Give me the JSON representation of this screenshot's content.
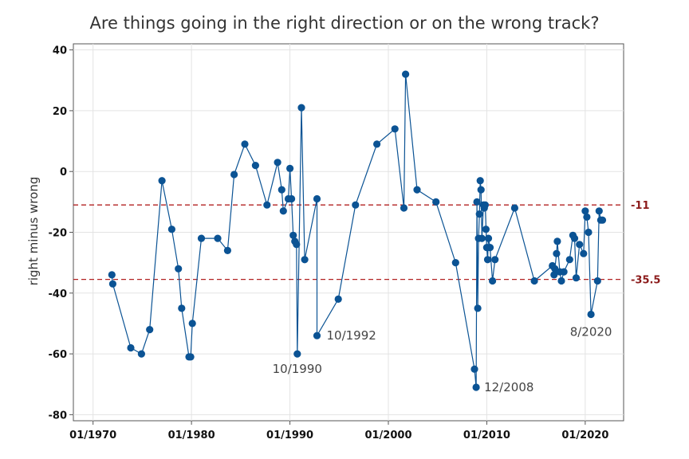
{
  "chart_data": {
    "type": "line",
    "title": "Are things going in the right direction or on the wrong track?",
    "xlabel": "",
    "ylabel": "right minus wrong",
    "ylim": [
      -82,
      42
    ],
    "y_ticks": [
      40,
      20,
      0,
      -20,
      -40,
      -60,
      -80
    ],
    "x_ticks": [
      "01/1970",
      "01/1980",
      "01/1990",
      "01/2000",
      "01/2010",
      "01/2020"
    ],
    "grid": true,
    "series_color": "#0b5394",
    "reference_color": "#b22222",
    "series": [
      {
        "points": [
          [
            "1971-12",
            -34
          ],
          [
            "1972-01",
            -37
          ],
          [
            "1973-11",
            -58
          ],
          [
            "1974-12",
            -60
          ],
          [
            "1975-10",
            -52
          ],
          [
            "1977-01",
            -3
          ],
          [
            "1978-01",
            -19
          ],
          [
            "1978-09",
            -32
          ],
          [
            "1979-01",
            -45
          ],
          [
            "1979-10",
            -61
          ],
          [
            "1979-12",
            -61
          ],
          [
            "1980-02",
            -50
          ],
          [
            "1981-01",
            -22
          ],
          [
            "1982-09",
            -22
          ],
          [
            "1983-09",
            -26
          ],
          [
            "1984-05",
            -1
          ],
          [
            "1985-06",
            9
          ],
          [
            "1986-07",
            2
          ],
          [
            "1987-09",
            -11
          ],
          [
            "1988-10",
            3
          ],
          [
            "1989-03",
            -6
          ],
          [
            "1989-05",
            -13
          ],
          [
            "1989-11",
            -9
          ],
          [
            "1990-01",
            1
          ],
          [
            "1990-03",
            -9
          ],
          [
            "1990-05",
            -21
          ],
          [
            "1990-07",
            -23
          ],
          [
            "1990-09",
            -24
          ],
          [
            "1990-10",
            -60
          ],
          [
            "1991-03",
            21
          ],
          [
            "1991-07",
            -29
          ],
          [
            "1992-10",
            -9
          ],
          [
            "1992-10",
            -54
          ],
          [
            "1994-12",
            -42
          ],
          [
            "1996-09",
            -11
          ],
          [
            "1998-11",
            9
          ],
          [
            "2000-09",
            14
          ],
          [
            "2001-08",
            -12
          ],
          [
            "2001-10",
            32
          ],
          [
            "2002-12",
            -6
          ],
          [
            "2004-11",
            -10
          ],
          [
            "2006-11",
            -30
          ],
          [
            "2008-10",
            -65
          ],
          [
            "2008-12",
            -71
          ],
          [
            "2009-01",
            -10
          ],
          [
            "2009-02",
            -45
          ],
          [
            "2009-03",
            -22
          ],
          [
            "2009-04",
            -14
          ],
          [
            "2009-05",
            -3
          ],
          [
            "2009-06",
            -6
          ],
          [
            "2009-07",
            -22
          ],
          [
            "2009-09",
            -11
          ],
          [
            "2009-10",
            -12
          ],
          [
            "2009-11",
            -11
          ],
          [
            "2009-12",
            -19
          ],
          [
            "2010-01",
            -25
          ],
          [
            "2010-02",
            -29
          ],
          [
            "2010-03",
            -22
          ],
          [
            "2010-05",
            -25
          ],
          [
            "2010-08",
            -36
          ],
          [
            "2010-11",
            -29
          ],
          [
            "2012-11",
            -12
          ],
          [
            "2014-11",
            -36
          ],
          [
            "2016-09",
            -31
          ],
          [
            "2016-11",
            -34
          ],
          [
            "2016-12",
            -32
          ],
          [
            "2017-02",
            -27
          ],
          [
            "2017-03",
            -23
          ],
          [
            "2017-06",
            -33
          ],
          [
            "2017-08",
            -36
          ],
          [
            "2017-11",
            -33
          ],
          [
            "2018-06",
            -29
          ],
          [
            "2018-10",
            -21
          ],
          [
            "2018-12",
            -22
          ],
          [
            "2019-02",
            -35
          ],
          [
            "2019-06",
            -24
          ],
          [
            "2019-11",
            -27
          ],
          [
            "2020-01",
            -13
          ],
          [
            "2020-03",
            -15
          ],
          [
            "2020-05",
            -20
          ],
          [
            "2020-08",
            -47
          ],
          [
            "2021-04",
            -36
          ],
          [
            "2021-06",
            -13
          ],
          [
            "2021-08",
            -16
          ],
          [
            "2021-10",
            -16
          ]
        ]
      }
    ],
    "reference_lines": [
      {
        "y": -11,
        "label": "-11"
      },
      {
        "y": -35.5,
        "label": "-35.5"
      }
    ],
    "annotations": [
      {
        "text": "10/1990",
        "x": "1990-10",
        "y": -60
      },
      {
        "text": "10/1992",
        "x": "1992-10",
        "y": -54
      },
      {
        "text": "12/2008",
        "x": "2008-12",
        "y": -71
      },
      {
        "text": "8/2020",
        "x": "2020-08",
        "y": -47
      }
    ]
  }
}
